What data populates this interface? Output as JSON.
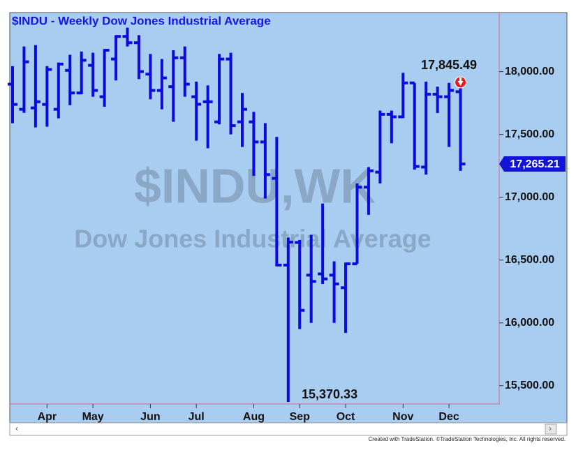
{
  "chart_data": {
    "type": "ohlc",
    "title": "$INDU - Weekly  Dow Jones Industrial Average",
    "watermark": "$INDU,WK",
    "watermark_subtitle": "Dow Jones Industrial Average",
    "footer": "Created with TradeStation. ©TradeStation Technologies, Inc. All rights reserved.",
    "series": [
      {
        "name": "$INDU",
        "color": "#0b0bdc",
        "open": [
          17900,
          17700,
          17711,
          17739,
          17700,
          18010,
          17830,
          18050,
          17800,
          18100,
          18280,
          18230,
          17980,
          17850,
          17880,
          18110,
          17800,
          17760,
          17600,
          18100,
          17600,
          17600,
          17440,
          17150,
          16460,
          16640,
          16380,
          16390,
          16380,
          16280,
          16470,
          17080,
          17200,
          17660,
          17640,
          17910,
          17240,
          17820,
          17800,
          17840
        ],
        "high": [
          18044,
          18200,
          18211,
          18044,
          18072,
          18134,
          18160,
          18150,
          18180,
          18290,
          18350,
          18290,
          18140,
          18100,
          18170,
          18200,
          17920,
          17890,
          18140,
          18150,
          17830,
          17680,
          17590,
          17480,
          16680,
          16660,
          16700,
          16950,
          16490,
          16480,
          17110,
          17240,
          17690,
          17690,
          17990,
          17910,
          17920,
          17880,
          17910,
          17920
        ],
        "low": [
          17589,
          17672,
          17556,
          17561,
          17628,
          17733,
          17820,
          17800,
          17720,
          17930,
          18200,
          17940,
          17780,
          17700,
          17600,
          17800,
          17450,
          17390,
          17580,
          17500,
          17400,
          17170,
          16990,
          16450,
          15370.33,
          15950,
          16000,
          16310,
          16000,
          15920,
          16470,
          16860,
          17110,
          17430,
          17630,
          17220,
          17180,
          17670,
          17400,
          17210
        ],
        "close": [
          17739,
          18078,
          17760,
          18017,
          18060,
          17830,
          18090,
          17850,
          18170,
          18280,
          18230,
          18000,
          17850,
          17950,
          18110,
          17900,
          17740,
          17760,
          18100,
          17570,
          17700,
          17440,
          17180,
          16460,
          16643,
          16100,
          16330,
          16350,
          16310,
          16470,
          17080,
          17210,
          17660,
          17640,
          17910,
          17245,
          17820,
          17800,
          17850,
          17265.21
        ]
      }
    ],
    "month_labels": [
      {
        "label": "Apr",
        "index": 3
      },
      {
        "label": "May",
        "index": 7
      },
      {
        "label": "Jun",
        "index": 12
      },
      {
        "label": "Jul",
        "index": 16
      },
      {
        "label": "Aug",
        "index": 21
      },
      {
        "label": "Sep",
        "index": 25
      },
      {
        "label": "Oct",
        "index": 29
      },
      {
        "label": "Nov",
        "index": 34
      },
      {
        "label": "Dec",
        "index": 38
      }
    ],
    "ylim": [
      15360,
      18470
    ],
    "yticks": [
      {
        "value": 15500,
        "label": "15,500.00"
      },
      {
        "value": 16000,
        "label": "16,000.00"
      },
      {
        "value": 16500,
        "label": "16,500.00"
      },
      {
        "value": 17000,
        "label": "17,000.00"
      },
      {
        "value": 17500,
        "label": "17,500.00"
      },
      {
        "value": 18000,
        "label": "18,000.00"
      }
    ],
    "annotations": [
      {
        "label": "17,845.49",
        "value": 17845.49
      },
      {
        "label": "15,370.33",
        "value": 15370.33
      }
    ],
    "last_price": {
      "label": "17,265.21",
      "value": 17265.21
    }
  }
}
